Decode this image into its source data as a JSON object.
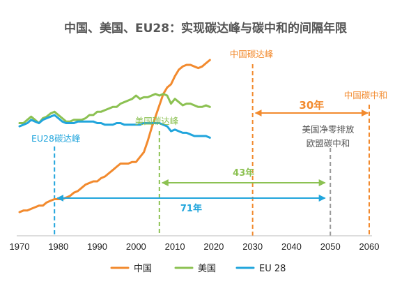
{
  "chart_data": {
    "type": "line",
    "title": "中国、美国、EU28：实现碳达峰与碳中和的间隔年限",
    "xlabel": "",
    "ylabel": "",
    "xlim": [
      1970,
      2060
    ],
    "x_ticks": [
      "1970",
      "1980",
      "1990",
      "2000",
      "2010",
      "2020",
      "2030",
      "2040",
      "2050",
      "2060"
    ],
    "ylim": [
      0,
      100
    ],
    "y_axis_visible": false,
    "grid": false,
    "legend_position": "bottom",
    "colors": {
      "china": "#f28a2e",
      "usa": "#8cc152",
      "eu": "#21a5dc",
      "neutral_gray": "#9a9a9a"
    },
    "series": [
      {
        "name": "中国",
        "color": "#f28a2e",
        "x": [
          1970,
          1971,
          1972,
          1973,
          1974,
          1975,
          1976,
          1977,
          1978,
          1979,
          1980,
          1981,
          1982,
          1983,
          1984,
          1985,
          1986,
          1987,
          1988,
          1989,
          1990,
          1991,
          1992,
          1993,
          1994,
          1995,
          1996,
          1997,
          1998,
          1999,
          2000,
          2001,
          2002,
          2003,
          2004,
          2005,
          2006,
          2007,
          2008,
          2009,
          2010,
          2011,
          2012,
          2013,
          2014,
          2015,
          2016,
          2017,
          2018,
          2019
        ],
        "values": [
          6,
          7,
          7,
          8,
          9,
          10,
          10,
          12,
          13,
          14,
          14,
          14,
          15,
          16,
          18,
          19,
          21,
          23,
          24,
          25,
          25,
          27,
          28,
          30,
          32,
          34,
          36,
          36,
          36,
          37,
          37,
          40,
          43,
          50,
          58,
          65,
          72,
          79,
          83,
          85,
          90,
          94,
          96,
          97,
          97,
          96,
          95,
          96,
          98,
          100
        ]
      },
      {
        "name": "美国",
        "color": "#8cc152",
        "x": [
          1970,
          1971,
          1972,
          1973,
          1974,
          1975,
          1976,
          1977,
          1978,
          1979,
          1980,
          1981,
          1982,
          1983,
          1984,
          1985,
          1986,
          1987,
          1988,
          1989,
          1990,
          1991,
          1992,
          1993,
          1994,
          1995,
          1996,
          1997,
          1998,
          1999,
          2000,
          2001,
          2002,
          2003,
          2004,
          2005,
          2006,
          2007,
          2008,
          2009,
          2010,
          2011,
          2012,
          2013,
          2014,
          2015,
          2016,
          2017,
          2018,
          2019
        ],
        "values": [
          61,
          61,
          63,
          65,
          63,
          61,
          64,
          65,
          67,
          68,
          66,
          64,
          62,
          62,
          63,
          63,
          63,
          64,
          66,
          66,
          68,
          68,
          69,
          70,
          71,
          71,
          73,
          74,
          75,
          76,
          78,
          76,
          77,
          77,
          78,
          79,
          78,
          79,
          78,
          73,
          76,
          74,
          72,
          73,
          73,
          72,
          71,
          71,
          72,
          71
        ]
      },
      {
        "name": "EU 28",
        "color": "#21a5dc",
        "x": [
          1970,
          1971,
          1972,
          1973,
          1974,
          1975,
          1976,
          1977,
          1978,
          1979,
          1980,
          1981,
          1982,
          1983,
          1984,
          1985,
          1986,
          1987,
          1988,
          1989,
          1990,
          1991,
          1992,
          1993,
          1994,
          1995,
          1996,
          1997,
          1998,
          1999,
          2000,
          2001,
          2002,
          2003,
          2004,
          2005,
          2006,
          2007,
          2008,
          2009,
          2010,
          2011,
          2012,
          2013,
          2014,
          2015,
          2016,
          2017,
          2018,
          2019
        ],
        "values": [
          59,
          60,
          61,
          63,
          62,
          61,
          63,
          64,
          65,
          66,
          64,
          62,
          61,
          61,
          61,
          62,
          62,
          62,
          62,
          62,
          61,
          61,
          60,
          60,
          60,
          61,
          61,
          60,
          60,
          60,
          60,
          60,
          61,
          61,
          61,
          61,
          61,
          60,
          59,
          56,
          57,
          56,
          55,
          55,
          54,
          53,
          53,
          53,
          53,
          52
        ]
      }
    ],
    "reference_lines": [
      {
        "x": 1979,
        "color": "#21a5dc",
        "label": "EU28碳达峰"
      },
      {
        "x": 2006,
        "color": "#8cc152",
        "label": "美国碳达峰"
      },
      {
        "x": 2030,
        "color": "#f28a2e",
        "label": "中国碳达峰"
      },
      {
        "x": 2050,
        "color": "#9a9a9a",
        "label": "美国净零排放\n欧盟碳中和"
      },
      {
        "x": 2060,
        "color": "#f28a2e",
        "label": "中国碳中和"
      }
    ],
    "spans": [
      {
        "from": 2030,
        "to": 2060,
        "label": "30年",
        "color": "#f28a2e"
      },
      {
        "from": 2006,
        "to": 2049,
        "label": "43年",
        "color": "#8cc152"
      },
      {
        "from": 1979,
        "to": 2049,
        "label": "71年",
        "color": "#21a5dc"
      }
    ]
  }
}
